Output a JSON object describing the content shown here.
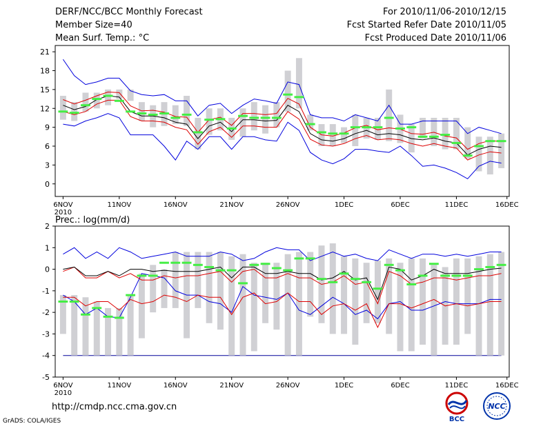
{
  "header": {
    "title": "DERF/NCC/BCC Monthly Forecast",
    "member_size": "Member Size=40",
    "variable": "Mean Surf. Temp.: °C",
    "forecast_period": "For 2010/11/06-2010/12/15",
    "start_date": "Fcst Started Refer Date 2010/11/05",
    "produced_date": "Fcst Produced Date 2010/11/06"
  },
  "footer": {
    "url": "http://cmdp.ncc.cma.gov.cn",
    "grads": "GrADS: COLA/IGES",
    "logo_bcc": "BCC",
    "logo_ncc": "NCC"
  },
  "colors": {
    "box": "#d0d0d4",
    "median": "#44ee44",
    "mean": "#000000",
    "band": "#dd0000",
    "envelope": "#0000dd",
    "axis": "#000000",
    "floor": "#000099"
  },
  "chart_data": [
    {
      "type": "box-plume",
      "id": "temp",
      "title": "Mean Surf. Temp.: °C",
      "ylim": [
        -2,
        22
      ],
      "yticks": [
        0,
        3,
        6,
        9,
        12,
        15,
        18,
        21
      ],
      "xlim": [
        -0.7,
        39.7
      ],
      "xtick_positions": [
        0,
        5,
        10,
        15,
        20,
        25,
        30,
        35,
        39.5
      ],
      "xtick_labels": [
        "6NOV",
        "11NOV",
        "16NOV",
        "21NOV",
        "26NOV",
        "1DEC",
        "6DEC",
        "11DEC",
        "16DEC"
      ],
      "x_sublabel": "2010",
      "days": 40,
      "box_low": [
        10.2,
        10,
        11.5,
        12,
        12.5,
        13.5,
        13.2,
        10,
        9,
        9.2,
        9.5,
        9.2,
        5.5,
        7.8,
        8.5,
        7,
        7.5,
        8.5,
        8,
        9,
        11.5,
        12,
        8.5,
        6,
        6,
        6.5,
        6,
        7.2,
        7,
        6.8,
        6.5,
        5,
        7.2,
        6,
        5.5,
        5.5,
        4,
        2,
        1.5,
        2.5
      ],
      "box_high": [
        14,
        13,
        14.5,
        14.5,
        15,
        15,
        15,
        13,
        12.5,
        13,
        12.5,
        14,
        10.5,
        12,
        12,
        10.5,
        12,
        13,
        12.5,
        13,
        18,
        20,
        11,
        9.5,
        9.5,
        9,
        11,
        10.5,
        10.5,
        15,
        11,
        9.5,
        10.5,
        10.5,
        10.5,
        10.5,
        9,
        7.5,
        7.5,
        8
      ],
      "median": [
        11.5,
        11.3,
        12.5,
        13.5,
        14,
        13.2,
        11.5,
        11.2,
        11,
        11.2,
        10.5,
        11,
        8.2,
        10.2,
        10.3,
        8.8,
        10.8,
        10.5,
        10.5,
        10.5,
        14.2,
        13.8,
        9.5,
        8.2,
        8,
        8,
        9,
        9,
        9,
        10.5,
        8.8,
        9,
        7.5,
        7.5,
        7.8,
        6.5,
        4.5,
        6,
        6.8,
        6.8
      ],
      "mean": [
        12.5,
        11.8,
        12.3,
        13.4,
        14,
        13.8,
        11.5,
        10.8,
        10.8,
        10.5,
        9.8,
        9.5,
        7.2,
        9.2,
        9.8,
        8.3,
        10.2,
        10.2,
        10,
        10.1,
        12.5,
        11.5,
        8,
        7,
        6.8,
        7.2,
        8,
        8.5,
        7.8,
        8,
        7.8,
        7.2,
        7,
        7.3,
        6.8,
        6.5,
        4.6,
        5.5,
        6,
        5.8
      ],
      "band_low": [
        11.5,
        11,
        11.5,
        12.7,
        13.3,
        13.3,
        10.7,
        10,
        10,
        9.8,
        9,
        8.6,
        6.3,
        8.3,
        9,
        7.4,
        9.2,
        9.2,
        9,
        9,
        11.5,
        10.3,
        7.1,
        6.2,
        6,
        6.4,
        7.2,
        7.7,
        7,
        7.2,
        7,
        6.4,
        6,
        6.4,
        6,
        5.7,
        3.8,
        4.6,
        5.1,
        4.9
      ],
      "band_high": [
        13.4,
        12.7,
        13.3,
        14,
        14.6,
        14.5,
        12.4,
        11.6,
        11.7,
        11.4,
        10.7,
        10.6,
        8.2,
        10.2,
        10.6,
        9.3,
        11.2,
        11.2,
        11,
        11.2,
        13.6,
        12.7,
        9,
        7.8,
        7.6,
        8.1,
        8.9,
        9.3,
        8.6,
        8.9,
        8.7,
        8,
        7.9,
        8.2,
        7.6,
        7.3,
        5.5,
        6.4,
        6.9,
        6.7
      ],
      "env_low": [
        9.5,
        9.2,
        10,
        10.5,
        11.2,
        10.5,
        7.8,
        7.8,
        7.8,
        6,
        3.8,
        6.8,
        5.5,
        7.5,
        7.5,
        5.5,
        7.5,
        7.5,
        7,
        6.8,
        9.8,
        8.5,
        5,
        3.8,
        3.2,
        4,
        5.5,
        5.5,
        5.2,
        5,
        6,
        4.5,
        2.8,
        3,
        2.5,
        1.8,
        0.8,
        2.8,
        3.6,
        3.3
      ],
      "env_high": [
        19.8,
        17.2,
        15.8,
        16.2,
        16.8,
        16.8,
        14.8,
        14.2,
        14,
        14.2,
        13.2,
        13.2,
        10.8,
        12.5,
        12.8,
        11.2,
        12.5,
        13.5,
        13.2,
        12.8,
        16.2,
        15.8,
        11,
        10.5,
        10.5,
        10,
        11,
        10.5,
        10,
        12.5,
        9.5,
        9.5,
        10,
        10,
        10,
        10,
        8,
        9,
        8.5,
        8
      ]
    },
    {
      "type": "box-plume",
      "id": "prec",
      "title": "Prec.: log(mm/d)",
      "ylim": [
        -5,
        2
      ],
      "yticks": [
        -5,
        -4,
        -3,
        -2,
        -1,
        0,
        1,
        2
      ],
      "xlim": [
        -0.7,
        39.7
      ],
      "xtick_positions": [
        0,
        5,
        10,
        15,
        20,
        25,
        30,
        35,
        39.5
      ],
      "xtick_labels": [
        "6NOV",
        "11NOV",
        "16NOV",
        "21NOV",
        "26NOV",
        "1DEC",
        "6DEC",
        "11DEC",
        "16DEC"
      ],
      "x_sublabel": "2010",
      "days": 40,
      "floor_line": -4,
      "box_low": [
        -3,
        -4,
        -4,
        -4,
        -4,
        -4,
        -4,
        -3.2,
        -2,
        -1.8,
        -1.8,
        -3.2,
        -1.8,
        -2.5,
        -2.8,
        -4,
        -4,
        -3.8,
        -2.5,
        -2.8,
        -4,
        -4,
        -2.2,
        -2.5,
        -3,
        -3,
        -3.5,
        -2.5,
        -2.5,
        -3,
        -3.8,
        -3.8,
        -3.5,
        -4,
        -3.5,
        -3.5,
        -3,
        -4,
        -4,
        -4
      ],
      "box_high": [
        -1.2,
        -1.2,
        -1.3,
        -1.5,
        -1.8,
        -1.8,
        -1.2,
        -0.2,
        0.2,
        0,
        0.8,
        0.8,
        0.8,
        0.8,
        0.8,
        0.6,
        0.7,
        0.3,
        0.3,
        0.3,
        0.7,
        0.8,
        0.8,
        1.1,
        1.2,
        0.6,
        0.5,
        0.3,
        0.4,
        0.5,
        0.3,
        0.5,
        0.5,
        0.2,
        0.1,
        0.5,
        0.5,
        0.6,
        0.7,
        0.8
      ],
      "median": [
        -1.5,
        -1.5,
        -2.1,
        -1.8,
        -2.2,
        -2.25,
        -1.2,
        -0.3,
        -0.3,
        0.3,
        0.3,
        0.3,
        0.2,
        0.1,
        -0.05,
        -0.05,
        -0.65,
        0.2,
        0.25,
        0.05,
        -0.05,
        0.5,
        0.5,
        -0.45,
        -0.6,
        -0.2,
        -0.45,
        -0.6,
        -0.9,
        0.2,
        -0.05,
        -0.7,
        -0.3,
        0.25,
        -0.3,
        -0.3,
        -0.3,
        0,
        0.1,
        0.2
      ],
      "mean": [
        0,
        0.1,
        -0.3,
        -0.3,
        -0.1,
        -0.3,
        0,
        0,
        -0.1,
        -0.05,
        -0.1,
        -0.1,
        -0.1,
        0,
        0.1,
        -0.4,
        0.1,
        0.1,
        -0.2,
        -0.2,
        -0.1,
        -0.2,
        -0.2,
        -0.5,
        -0.4,
        -0.1,
        -0.5,
        -0.4,
        -1.4,
        0.1,
        0,
        -0.5,
        -0.3,
        0,
        -0.2,
        -0.2,
        -0.2,
        -0.1,
        0,
        0.05
      ],
      "band_low": [
        -1.3,
        -1.3,
        -1.7,
        -1.5,
        -1.5,
        -1.9,
        -1.4,
        -1.6,
        -1.5,
        -1.2,
        -1.3,
        -1.5,
        -1.2,
        -1.3,
        -1.3,
        -2.1,
        -1.3,
        -1.1,
        -1.6,
        -1.5,
        -1.1,
        -1.5,
        -1.5,
        -2.1,
        -1.7,
        -1.6,
        -1.9,
        -1.6,
        -2.7,
        -1.6,
        -1.6,
        -1.8,
        -1.6,
        -1.4,
        -1.7,
        -1.6,
        -1.7,
        -1.6,
        -1.5,
        -1.5
      ],
      "band_high": [
        -0.1,
        0.1,
        -0.4,
        -0.4,
        -0.1,
        -0.4,
        -0.2,
        -0.5,
        -0.5,
        -0.3,
        -0.4,
        -0.3,
        -0.3,
        -0.2,
        -0.1,
        -0.6,
        -0.1,
        0,
        -0.4,
        -0.4,
        -0.2,
        -0.4,
        -0.4,
        -0.7,
        -0.6,
        -0.3,
        -0.7,
        -0.6,
        -1.6,
        -0.1,
        -0.3,
        -0.7,
        -0.6,
        -0.4,
        -0.4,
        -0.5,
        -0.4,
        -0.3,
        -0.3,
        -0.2
      ],
      "env_low": [
        -1.2,
        -1.5,
        -2.1,
        -1.8,
        -2.2,
        -2.25,
        -1.3,
        -0.2,
        -0.3,
        -0.4,
        -1,
        -1.2,
        -1.2,
        -1.5,
        -1.6,
        -2,
        -0.8,
        -1.2,
        -1.3,
        -1.4,
        -1.1,
        -1.9,
        -2.1,
        -1.7,
        -1.3,
        -1.6,
        -2.1,
        -1.9,
        -2.3,
        -1.6,
        -1.5,
        -1.9,
        -1.9,
        -1.7,
        -1.5,
        -1.6,
        -1.6,
        -1.6,
        -1.4,
        -1.4
      ],
      "env_high": [
        0.7,
        1,
        0.5,
        0.8,
        0.5,
        1,
        0.8,
        0.5,
        0.6,
        0.7,
        0.8,
        0.6,
        0.6,
        0.6,
        0.8,
        0.7,
        0.4,
        0.5,
        0.8,
        1,
        0.9,
        0.9,
        0.4,
        0.6,
        0.8,
        0.6,
        0.7,
        0.5,
        0.4,
        0.9,
        0.7,
        0.5,
        0.7,
        0.7,
        0.6,
        0.7,
        0.6,
        0.7,
        0.8,
        0.8
      ]
    }
  ]
}
